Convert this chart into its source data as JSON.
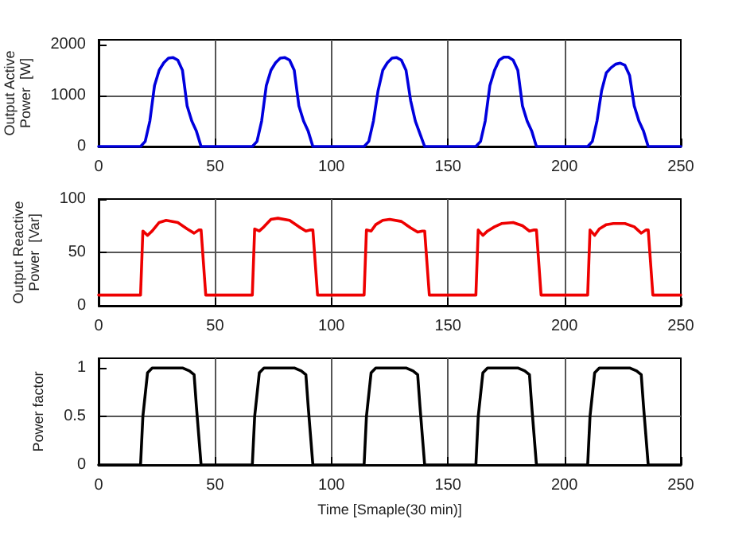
{
  "chart_data": [
    {
      "type": "line",
      "ylabel": "Output Active Power  [W]",
      "xlim": [
        0,
        250
      ],
      "xticks": [
        0,
        50,
        100,
        150,
        200,
        250
      ],
      "ylim": [
        0,
        2100
      ],
      "yticks": [
        0,
        1000,
        2000
      ],
      "grid": true,
      "line_style": "solid",
      "marker": "none",
      "x": [
        0,
        18,
        20,
        22,
        24,
        26,
        28,
        30,
        32,
        34,
        36,
        38,
        40,
        42,
        44,
        66,
        68,
        70,
        72,
        74,
        76,
        78,
        80,
        82,
        84,
        86,
        88,
        90,
        92,
        114,
        116,
        118,
        120,
        122,
        124,
        126,
        128,
        130,
        132,
        134,
        136,
        138,
        140,
        162,
        164,
        166,
        168,
        170,
        172,
        174,
        176,
        178,
        180,
        182,
        184,
        186,
        188,
        210,
        212,
        214,
        216,
        218,
        220,
        222,
        224,
        226,
        228,
        230,
        232,
        234,
        236,
        250
      ],
      "series": [
        {
          "color": "#0000dd",
          "values": [
            0,
            0,
            100,
            500,
            1200,
            1500,
            1650,
            1740,
            1750,
            1700,
            1500,
            800,
            500,
            300,
            0,
            0,
            100,
            500,
            1200,
            1500,
            1650,
            1740,
            1750,
            1700,
            1500,
            800,
            500,
            300,
            0,
            0,
            100,
            500,
            1100,
            1500,
            1650,
            1740,
            1750,
            1700,
            1500,
            900,
            500,
            250,
            0,
            0,
            100,
            500,
            1200,
            1500,
            1700,
            1760,
            1760,
            1700,
            1500,
            800,
            500,
            300,
            0,
            0,
            100,
            500,
            1100,
            1450,
            1550,
            1620,
            1640,
            1600,
            1400,
            800,
            500,
            300,
            0,
            0
          ]
        }
      ]
    },
    {
      "type": "line",
      "ylabel": "Output Reactive Power  [Var]",
      "xlim": [
        0,
        250
      ],
      "xticks": [
        0,
        50,
        100,
        150,
        200,
        250
      ],
      "ylim": [
        0,
        100
      ],
      "yticks": [
        0,
        50,
        100
      ],
      "grid": true,
      "line_style": "solid",
      "marker": "none",
      "x": [
        0,
        18,
        19,
        21,
        23,
        26,
        29,
        34,
        38,
        41,
        43,
        44,
        46,
        66,
        67,
        69,
        71,
        74,
        77,
        82,
        86,
        89,
        91,
        92,
        94,
        114,
        115,
        117,
        119,
        122,
        125,
        130,
        134,
        137,
        139,
        140,
        142,
        162,
        163,
        165,
        167,
        170,
        173,
        178,
        182,
        185,
        187,
        188,
        190,
        210,
        211,
        213,
        215,
        218,
        221,
        226,
        230,
        233,
        235,
        236,
        238,
        250
      ],
      "series": [
        {
          "color": "#ee0000",
          "values": [
            10,
            10,
            70,
            66,
            70,
            78,
            80,
            78,
            72,
            68,
            71,
            71,
            10,
            10,
            72,
            70,
            74,
            81,
            82,
            80,
            74,
            70,
            71,
            71,
            10,
            10,
            71,
            70,
            76,
            80,
            81,
            79,
            73,
            69,
            70,
            70,
            10,
            10,
            71,
            66,
            70,
            74,
            77,
            78,
            75,
            70,
            71,
            71,
            10,
            10,
            71,
            66,
            72,
            76,
            77,
            77,
            74,
            68,
            71,
            71,
            10,
            10
          ]
        }
      ]
    },
    {
      "type": "line",
      "ylabel": "Power factor",
      "xlabel": "Time [Smaple(30 min)]",
      "xlim": [
        0,
        250
      ],
      "xticks": [
        0,
        50,
        100,
        150,
        200,
        250
      ],
      "ylim": [
        0,
        1.1
      ],
      "yticks": [
        0,
        0.5,
        1
      ],
      "grid": true,
      "line_style": "solid",
      "marker": "none",
      "x": [
        0,
        18,
        19,
        21,
        23,
        36,
        39,
        41,
        42,
        44,
        66,
        67,
        69,
        71,
        84,
        87,
        89,
        90,
        92,
        114,
        115,
        117,
        119,
        132,
        135,
        137,
        138,
        140,
        162,
        163,
        165,
        167,
        180,
        183,
        185,
        186,
        188,
        210,
        211,
        213,
        215,
        228,
        231,
        233,
        234,
        236,
        250
      ],
      "series": [
        {
          "color": "#000000",
          "values": [
            0,
            0,
            0.5,
            0.95,
            1,
            1,
            0.97,
            0.93,
            0.6,
            0,
            0,
            0.5,
            0.95,
            1,
            1,
            0.97,
            0.93,
            0.6,
            0,
            0,
            0.5,
            0.95,
            1,
            1,
            0.97,
            0.93,
            0.6,
            0,
            0,
            0.5,
            0.95,
            1,
            1,
            0.97,
            0.93,
            0.6,
            0,
            0,
            0.5,
            0.95,
            1,
            1,
            0.97,
            0.93,
            0.6,
            0,
            0
          ]
        }
      ]
    }
  ]
}
